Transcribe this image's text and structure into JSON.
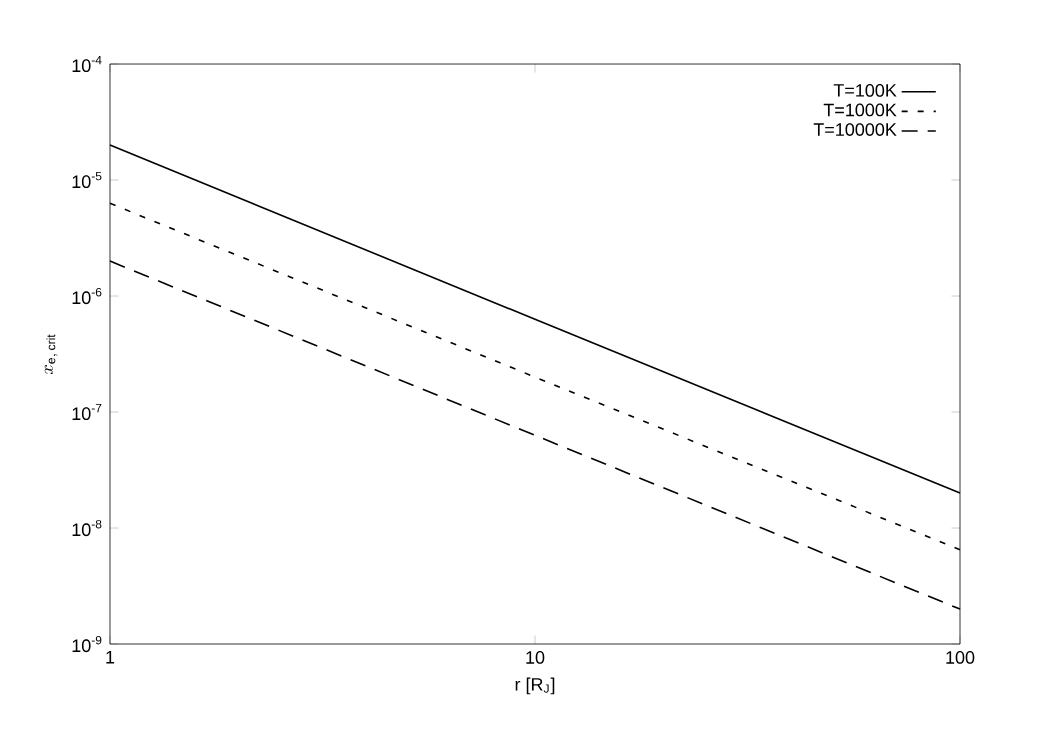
{
  "chart_data": {
    "type": "line",
    "xlabel": "r [R$_{J}$]",
    "ylabel": "x_{\\mathrm{e,\\,crit}}",
    "log": "xy",
    "grid": false,
    "legend": "top right",
    "marker": "none",
    "xlim": [
      1,
      100
    ],
    "ylim": [
      1e-09,
      0.0001
    ],
    "xticks": [
      1,
      10,
      100
    ],
    "yticks": [
      {
        "value": 1e-09,
        "label": "10$^{-9}$"
      },
      {
        "value": 1e-08,
        "label": "10$^{-8}$"
      },
      {
        "value": 1e-07,
        "label": "10$^{-7}$"
      },
      {
        "value": 1e-06,
        "label": "10$^{-6}$"
      },
      {
        "value": 1e-05,
        "label": "10$^{-5}$"
      },
      {
        "value": 0.0001,
        "label": "10$^{-4}$"
      }
    ],
    "series": [
      {
        "name": "T=100K",
        "color": "#000000",
        "line_style": "solid",
        "x": [
          1,
          10,
          100
        ],
        "values": [
          2e-05,
          6.3e-07,
          2e-08
        ]
      },
      {
        "name": "T=1000K",
        "color": "#000000",
        "line_style": "dotted",
        "x": [
          1,
          10,
          100
        ],
        "values": [
          6.3e-06,
          2e-07,
          6.5e-09
        ]
      },
      {
        "name": "T=10000K",
        "color": "#000000",
        "line_style": "dashed",
        "x": [
          1,
          10,
          100
        ],
        "values": [
          2e-06,
          6.3e-08,
          2e-09
        ]
      }
    ]
  }
}
